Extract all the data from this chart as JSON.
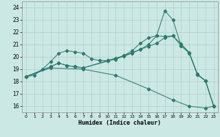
{
  "title": "",
  "xlabel": "Humidex (Indice chaleur)",
  "background_color": "#cce8e4",
  "line_color": "#2d7a6e",
  "grid_color": "#aacfcc",
  "xlim": [
    -0.5,
    23.5
  ],
  "ylim": [
    15.5,
    24.5
  ],
  "xticks": [
    0,
    1,
    2,
    3,
    4,
    5,
    6,
    7,
    8,
    9,
    10,
    11,
    12,
    13,
    14,
    15,
    16,
    17,
    18,
    19,
    20,
    21,
    22,
    23
  ],
  "yticks": [
    16,
    17,
    18,
    19,
    20,
    21,
    22,
    23,
    24
  ],
  "curve1_x": [
    0,
    1,
    2,
    3,
    4,
    5,
    6,
    7,
    8,
    9,
    10,
    11,
    12,
    13,
    14,
    15,
    16,
    17,
    18,
    19,
    20,
    21,
    22,
    23
  ],
  "curve1_y": [
    18.4,
    18.5,
    19.0,
    19.6,
    20.3,
    20.5,
    20.4,
    20.3,
    19.85,
    19.7,
    19.7,
    19.8,
    20.1,
    20.5,
    21.1,
    21.55,
    21.7,
    21.65,
    21.7,
    20.9,
    20.35,
    18.6,
    18.05,
    16.0
  ],
  "curve2_x": [
    0,
    3,
    4,
    5,
    6,
    7,
    10,
    11,
    12,
    13,
    14,
    15,
    16,
    17,
    18,
    19,
    20,
    21,
    22,
    23
  ],
  "curve2_y": [
    18.4,
    19.2,
    19.5,
    19.3,
    19.2,
    19.1,
    19.7,
    19.9,
    20.1,
    20.35,
    20.6,
    21.0,
    21.7,
    23.75,
    23.0,
    20.9,
    20.3,
    18.55,
    18.05,
    16.0
  ],
  "curve3_x": [
    0,
    3,
    4,
    5,
    6,
    7,
    10,
    11,
    12,
    13,
    14,
    15,
    16,
    17,
    18,
    19,
    20,
    21,
    22,
    23
  ],
  "curve3_y": [
    18.4,
    19.2,
    19.5,
    19.3,
    19.2,
    19.1,
    19.65,
    19.85,
    20.05,
    20.3,
    20.6,
    20.85,
    21.1,
    21.55,
    21.7,
    21.05,
    20.35,
    18.55,
    18.05,
    16.0
  ],
  "curve4_x": [
    0,
    3,
    7,
    11,
    15,
    18,
    20,
    22,
    23
  ],
  "curve4_y": [
    18.4,
    19.1,
    19.0,
    18.5,
    17.4,
    16.5,
    16.0,
    15.85,
    16.0
  ]
}
